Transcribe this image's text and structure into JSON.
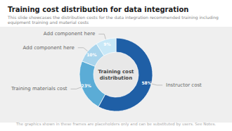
{
  "chart_data": {
    "type": "pie",
    "title": "Training cost distribution for data integration",
    "subtitle": "This slide showcases the distribution costs for the data integration recommended training including equipment training and material costs",
    "center_text": [
      "Training cost",
      "distribution"
    ],
    "footer": "The graphics shown in these frames are placeholders only and can be substituted by users. See Notes.",
    "categories": [
      "Instructor cost",
      "Training materials cost",
      "Add component here",
      "Add component here"
    ],
    "values": [
      58,
      23,
      10,
      9
    ],
    "value_labels": [
      "58%",
      "23%",
      "10%",
      "9%"
    ],
    "colors": [
      "#1f5fa6",
      "#5bacd6",
      "#a8d4ec",
      "#c9e8f7"
    ],
    "data_labels": true
  }
}
